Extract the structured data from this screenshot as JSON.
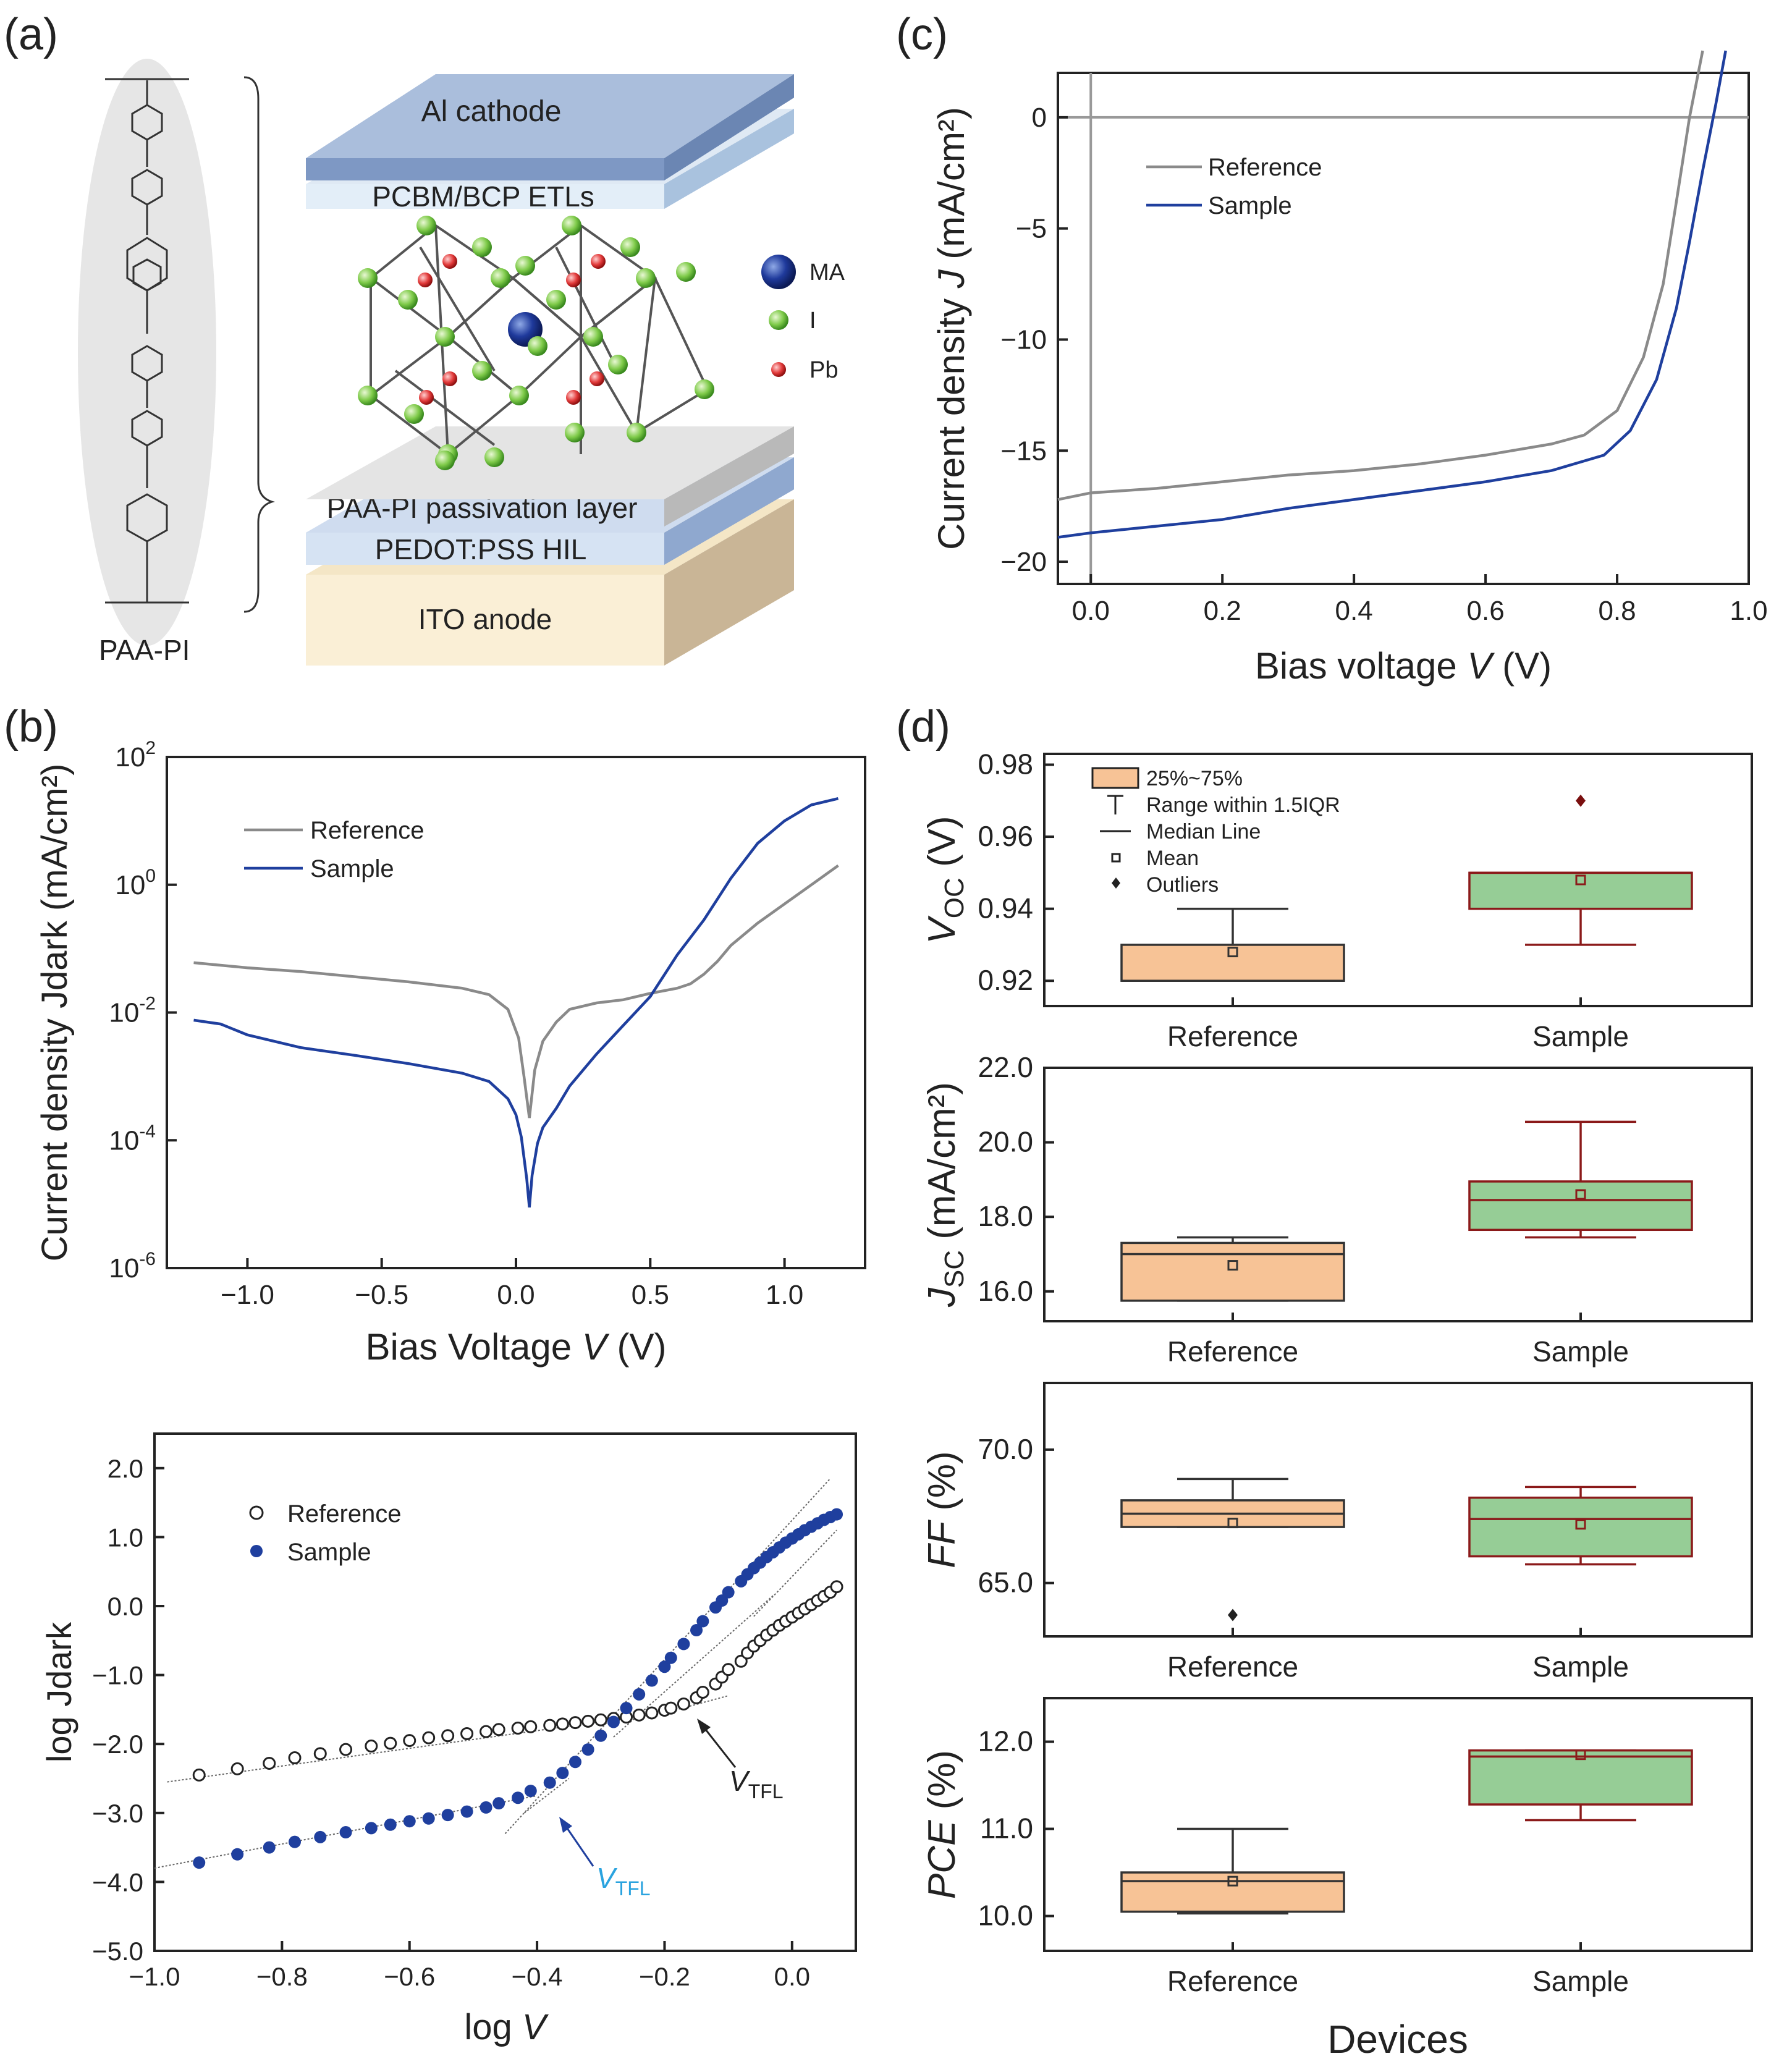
{
  "figure": {
    "panel_labels": [
      "(a)",
      "(b)",
      "(c)",
      "(d)"
    ],
    "colors": {
      "reference": "#8a8a8a",
      "sample": "#1f3f9e",
      "tfl_sample": "#2aa3df",
      "ref_box": "#f7c396",
      "sample_box": "#96cd96",
      "box_edge_ref": "#333333",
      "box_edge_sample": "#8b1a1a"
    }
  },
  "device": {
    "layers": [
      "Al cathode",
      "PCBM/BCP ETLs",
      "PAA-PI passivation layer",
      "PEDOT:PSS  HIL",
      "ITO anode"
    ],
    "legend": [
      "MA",
      "I",
      "Pb"
    ],
    "molecule_label": "PAA-PI"
  },
  "chart_data": [
    {
      "id": "c",
      "type": "line",
      "xlabel_pre": "Bias voltage ",
      "xlabel_var": "V",
      "xlabel_post": " (V)",
      "ylabel_pre": "Current density ",
      "ylabel_var": "J",
      "ylabel_post": " (mA/cm²)",
      "xlim": [
        -0.05,
        1.0
      ],
      "ylim": [
        -21,
        2
      ],
      "xticks": [
        "0.0",
        "0.2",
        "0.4",
        "0.6",
        "0.8",
        "1.0"
      ],
      "yticks": [
        "0",
        "−5",
        "−10",
        "−15",
        "−20"
      ],
      "legend": [
        "Reference",
        "Sample"
      ],
      "series": [
        {
          "name": "Reference",
          "x": [
            -0.05,
            0,
            0.1,
            0.2,
            0.3,
            0.4,
            0.5,
            0.6,
            0.7,
            0.75,
            0.8,
            0.84,
            0.87,
            0.89,
            0.91,
            0.93
          ],
          "y": [
            -17.2,
            -16.9,
            -16.7,
            -16.4,
            -16.1,
            -15.9,
            -15.6,
            -15.2,
            -14.7,
            -14.3,
            -13.2,
            -10.8,
            -7.5,
            -3.8,
            0,
            3
          ]
        },
        {
          "name": "Sample",
          "x": [
            -0.05,
            0,
            0.1,
            0.2,
            0.3,
            0.4,
            0.5,
            0.6,
            0.7,
            0.78,
            0.82,
            0.86,
            0.89,
            0.91,
            0.93,
            0.95,
            0.965
          ],
          "y": [
            -18.9,
            -18.7,
            -18.4,
            -18.1,
            -17.6,
            -17.2,
            -16.8,
            -16.4,
            -15.9,
            -15.2,
            -14.1,
            -11.8,
            -8.6,
            -5.6,
            -2.4,
            0.6,
            3
          ]
        }
      ]
    },
    {
      "id": "b1",
      "type": "line",
      "xlabel_pre": "Bias Voltage ",
      "xlabel_var": "V",
      "xlabel_post": " (V)",
      "ylabel": "Current density Jdark (mA/cm²)",
      "xlim": [
        -1.3,
        1.3
      ],
      "ylim": [
        -6,
        2
      ],
      "yscale": "log10 (values are exponents)",
      "xticks": [
        "−1.0",
        "−0.5",
        "0.0",
        "0.5",
        "1.0"
      ],
      "ytick_exps": [
        "2",
        "0",
        "-2",
        "-4",
        "-6"
      ],
      "legend": [
        "Reference",
        "Sample"
      ],
      "series": [
        {
          "name": "Reference",
          "x": [
            -1.2,
            -1.0,
            -0.8,
            -0.6,
            -0.4,
            -0.2,
            -0.1,
            -0.03,
            0.01,
            0.03,
            0.05,
            0.07,
            0.1,
            0.15,
            0.2,
            0.3,
            0.4,
            0.5,
            0.6,
            0.65,
            0.7,
            0.75,
            0.8,
            0.9,
            1.0,
            1.1,
            1.2
          ],
          "y": [
            -1.22,
            -1.3,
            -1.36,
            -1.44,
            -1.52,
            -1.62,
            -1.72,
            -1.95,
            -2.4,
            -3.0,
            -3.65,
            -2.9,
            -2.45,
            -2.15,
            -1.95,
            -1.85,
            -1.8,
            -1.7,
            -1.62,
            -1.55,
            -1.4,
            -1.2,
            -0.95,
            -0.6,
            -0.3,
            0.0,
            0.3
          ]
        },
        {
          "name": "Sample",
          "x": [
            -1.2,
            -1.1,
            -1.0,
            -0.8,
            -0.6,
            -0.4,
            -0.2,
            -0.1,
            -0.03,
            0.0,
            0.02,
            0.04,
            0.05,
            0.06,
            0.08,
            0.1,
            0.15,
            0.2,
            0.3,
            0.4,
            0.5,
            0.6,
            0.7,
            0.8,
            0.9,
            1.0,
            1.1,
            1.2
          ],
          "y": [
            -2.12,
            -2.18,
            -2.35,
            -2.55,
            -2.67,
            -2.8,
            -2.95,
            -3.08,
            -3.35,
            -3.6,
            -3.95,
            -4.6,
            -5.05,
            -4.55,
            -4.05,
            -3.8,
            -3.5,
            -3.15,
            -2.65,
            -2.2,
            -1.75,
            -1.1,
            -0.55,
            0.1,
            0.65,
            1.0,
            1.25,
            1.35
          ]
        }
      ]
    },
    {
      "id": "b2",
      "type": "scatter",
      "xlabel_pre": "log ",
      "xlabel_var": "V",
      "xlabel_post": "",
      "ylabel": "log Jdark",
      "xlim": [
        -1.0,
        0.1
      ],
      "ylim": [
        -5.0,
        2.5
      ],
      "xticks": [
        "−1.0",
        "−0.8",
        "−0.6",
        "−0.4",
        "−0.2",
        "0.0"
      ],
      "yticks": [
        "2.0",
        "1.0",
        "0.0",
        "−1.0",
        "−2.0",
        "−3.0",
        "−4.0",
        "−5.0"
      ],
      "legend": [
        "Reference",
        "Sample"
      ],
      "annotations": {
        "tfl": "V",
        "tfl_sub": "TFL"
      },
      "series": [
        {
          "name": "Reference",
          "x": [
            -0.93,
            -0.87,
            -0.82,
            -0.78,
            -0.74,
            -0.7,
            -0.66,
            -0.63,
            -0.6,
            -0.57,
            -0.54,
            -0.51,
            -0.48,
            -0.46,
            -0.43,
            -0.41,
            -0.38,
            -0.36,
            -0.34,
            -0.32,
            -0.3,
            -0.28,
            -0.26,
            -0.24,
            -0.22,
            -0.2,
            -0.19,
            -0.17,
            -0.15,
            -0.14,
            -0.12,
            -0.11,
            -0.1,
            -0.08,
            -0.07,
            -0.06,
            -0.05,
            -0.04,
            -0.03,
            -0.02,
            -0.01,
            0.0,
            0.01,
            0.02,
            0.03,
            0.04,
            0.05,
            0.06,
            0.07
          ],
          "y": [
            -2.45,
            -2.36,
            -2.28,
            -2.2,
            -2.14,
            -2.08,
            -2.03,
            -1.99,
            -1.95,
            -1.91,
            -1.88,
            -1.85,
            -1.82,
            -1.79,
            -1.77,
            -1.75,
            -1.73,
            -1.71,
            -1.69,
            -1.67,
            -1.65,
            -1.63,
            -1.61,
            -1.58,
            -1.55,
            -1.51,
            -1.48,
            -1.42,
            -1.33,
            -1.25,
            -1.13,
            -1.03,
            -0.92,
            -0.8,
            -0.68,
            -0.58,
            -0.5,
            -0.42,
            -0.35,
            -0.28,
            -0.22,
            -0.16,
            -0.1,
            -0.04,
            0.02,
            0.08,
            0.14,
            0.2,
            0.28
          ]
        },
        {
          "name": "Sample",
          "x": [
            -0.93,
            -0.87,
            -0.82,
            -0.78,
            -0.74,
            -0.7,
            -0.66,
            -0.63,
            -0.6,
            -0.57,
            -0.54,
            -0.51,
            -0.48,
            -0.46,
            -0.43,
            -0.41,
            -0.38,
            -0.36,
            -0.34,
            -0.32,
            -0.3,
            -0.28,
            -0.26,
            -0.24,
            -0.22,
            -0.2,
            -0.19,
            -0.17,
            -0.15,
            -0.14,
            -0.12,
            -0.11,
            -0.1,
            -0.08,
            -0.07,
            -0.06,
            -0.05,
            -0.04,
            -0.03,
            -0.02,
            -0.01,
            0.0,
            0.01,
            0.02,
            0.03,
            0.04,
            0.05,
            0.06,
            0.07
          ],
          "y": [
            -3.72,
            -3.6,
            -3.5,
            -3.42,
            -3.35,
            -3.28,
            -3.22,
            -3.17,
            -3.12,
            -3.08,
            -3.03,
            -2.98,
            -2.92,
            -2.86,
            -2.78,
            -2.68,
            -2.56,
            -2.42,
            -2.26,
            -2.08,
            -1.88,
            -1.68,
            -1.48,
            -1.28,
            -1.08,
            -0.88,
            -0.75,
            -0.55,
            -0.35,
            -0.22,
            -0.02,
            0.08,
            0.2,
            0.36,
            0.46,
            0.55,
            0.63,
            0.71,
            0.78,
            0.85,
            0.92,
            0.98,
            1.04,
            1.1,
            1.15,
            1.2,
            1.25,
            1.29,
            1.33
          ]
        }
      ]
    },
    {
      "id": "d",
      "type": "box",
      "categories": [
        "Reference",
        "Sample"
      ],
      "xlabel": "Devices",
      "legend": [
        "25%~75%",
        "Range within 1.5IQR",
        "Median Line",
        "Mean",
        "Outliers"
      ],
      "panels": [
        {
          "ylabel_var": "V",
          "ylabel_sub": "OC",
          "ylabel_post": " (V)",
          "ylim": [
            0.913,
            0.983
          ],
          "yticks": [
            0.92,
            0.94,
            0.96,
            0.98
          ],
          "ytick_labels": [
            "0.92",
            "0.94",
            "0.96",
            "0.98"
          ],
          "boxes": [
            {
              "q1": 0.92,
              "q3": 0.93,
              "median": 0.92,
              "mean": 0.928,
              "whisker_low": 0.92,
              "whisker_high": 0.94,
              "outliers": []
            },
            {
              "q1": 0.94,
              "q3": 0.95,
              "median": 0.95,
              "mean": 0.948,
              "whisker_low": 0.93,
              "whisker_high": 0.95,
              "outliers": [
                0.97
              ]
            }
          ]
        },
        {
          "ylabel_var": "J",
          "ylabel_sub": "SC",
          "ylabel_post": " (mA/cm²)",
          "ylim": [
            15.2,
            22.0
          ],
          "yticks": [
            16.0,
            18.0,
            20.0,
            22.0
          ],
          "ytick_labels": [
            "16.0",
            "18.0",
            "20.0",
            "22.0"
          ],
          "boxes": [
            {
              "q1": 15.75,
              "q3": 17.3,
              "median": 17.0,
              "mean": 16.7,
              "whisker_low": 15.75,
              "whisker_high": 17.45,
              "outliers": []
            },
            {
              "q1": 17.65,
              "q3": 18.95,
              "median": 18.45,
              "mean": 18.6,
              "whisker_low": 17.45,
              "whisker_high": 20.55,
              "outliers": []
            }
          ]
        },
        {
          "ylabel_var": "FF",
          "ylabel_sub": "",
          "ylabel_post": " (%)",
          "ylim": [
            63.0,
            72.5
          ],
          "yticks": [
            65.0,
            70.0
          ],
          "ytick_labels": [
            "65.0",
            "70.0"
          ],
          "boxes": [
            {
              "q1": 67.1,
              "q3": 68.1,
              "median": 67.6,
              "mean": 67.25,
              "whisker_low": 67.1,
              "whisker_high": 68.9,
              "outliers": [
                63.8
              ]
            },
            {
              "q1": 66.0,
              "q3": 68.2,
              "median": 67.4,
              "mean": 67.2,
              "whisker_low": 65.7,
              "whisker_high": 68.6,
              "outliers": []
            }
          ]
        },
        {
          "ylabel_var": "PCE",
          "ylabel_sub": "",
          "ylabel_post": " (%)",
          "ylim": [
            9.6,
            12.5
          ],
          "yticks": [
            10.0,
            11.0,
            12.0
          ],
          "ytick_labels": [
            "10.0",
            "11.0",
            "12.0"
          ],
          "boxes": [
            {
              "q1": 10.05,
              "q3": 10.5,
              "median": 10.4,
              "mean": 10.4,
              "whisker_low": 10.03,
              "whisker_high": 11.0,
              "outliers": []
            },
            {
              "q1": 11.28,
              "q3": 11.9,
              "median": 11.83,
              "mean": 11.85,
              "whisker_low": 11.1,
              "whisker_high": 11.9,
              "outliers": []
            }
          ]
        }
      ]
    }
  ]
}
